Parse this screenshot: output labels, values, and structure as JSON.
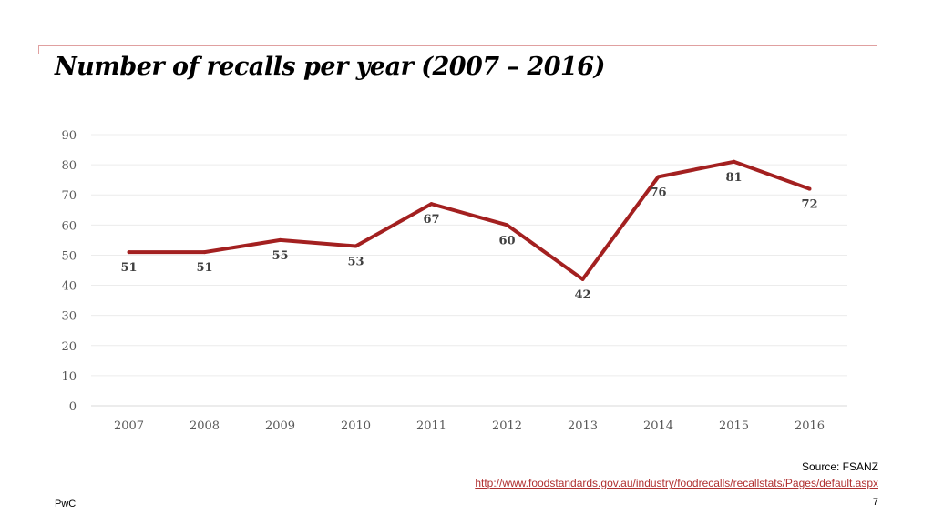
{
  "slide": {
    "title": "Number of recalls per year (2007 – 2016)",
    "source": "Source: FSANZ",
    "url": "http://www.foodstandards.gov.au/industry/foodrecalls/recallstats/Pages/default.aspx",
    "brand": "PwC",
    "page_number": "7",
    "accent_color": "#a32020"
  },
  "chart_data": {
    "type": "line",
    "title": "",
    "xlabel": "",
    "ylabel": "",
    "categories": [
      "2007",
      "2008",
      "2009",
      "2010",
      "2011",
      "2012",
      "2013",
      "2014",
      "2015",
      "2016"
    ],
    "values": [
      51,
      51,
      55,
      53,
      67,
      60,
      42,
      76,
      81,
      72
    ],
    "ylim": [
      0,
      90
    ],
    "yticks": [
      0,
      10,
      20,
      30,
      40,
      50,
      60,
      70,
      80,
      90
    ],
    "grid": true,
    "data_labels": true,
    "line_color": "#a32020"
  }
}
